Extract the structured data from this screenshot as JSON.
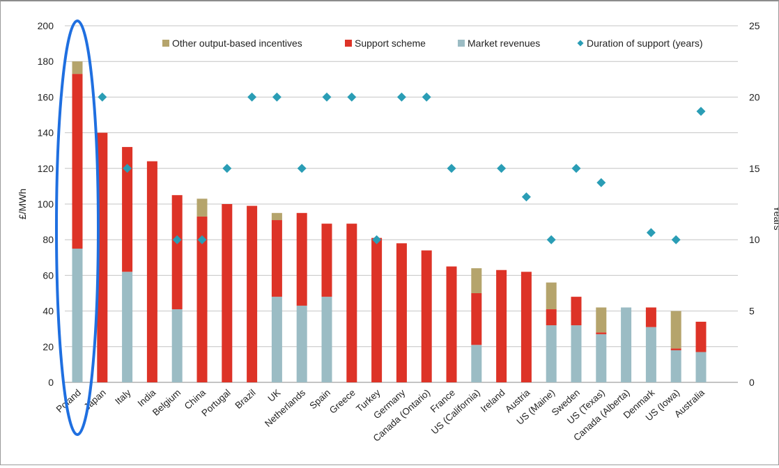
{
  "chart_data": {
    "type": "bar",
    "stacked": true,
    "title": "",
    "ylabel": "£/MWh",
    "y2label": "Years",
    "ylim": [
      0,
      200
    ],
    "yticks": [
      0,
      20,
      40,
      60,
      80,
      100,
      120,
      140,
      160,
      180,
      200
    ],
    "y2lim": [
      0,
      25
    ],
    "y2ticks": [
      0,
      5,
      10,
      15,
      20,
      25
    ],
    "grid": true,
    "legend_position": "top-right",
    "categories": [
      "Poland",
      "Japan",
      "Italy",
      "India",
      "Belgium",
      "China",
      "Portugal",
      "Brazil",
      "UK",
      "Netherlands",
      "Spain",
      "Greece",
      "Turkey",
      "Germany",
      "Canada (Ontario)",
      "France",
      "US (California)",
      "Ireland",
      "Austria",
      "US (Maine)",
      "Sweden",
      "US (Texas)",
      "Canada (Alberta)",
      "Denmark",
      "US (Iowa)",
      "Australia"
    ],
    "series": [
      {
        "name": "Market revenues",
        "color": "#9bbcc4",
        "axis": "left",
        "values": [
          75,
          0,
          62,
          0,
          41,
          0,
          0,
          0,
          48,
          43,
          48,
          0,
          0,
          0,
          0,
          0,
          21,
          0,
          0,
          32,
          32,
          27,
          42,
          31,
          18,
          17
        ]
      },
      {
        "name": "Support scheme",
        "color": "#dd3327",
        "axis": "left",
        "values": [
          98,
          140,
          70,
          124,
          64,
          93,
          100,
          99,
          43,
          52,
          41,
          89,
          81,
          78,
          74,
          65,
          29,
          63,
          62,
          9,
          16,
          1,
          0,
          11,
          1,
          17
        ]
      },
      {
        "name": "Other output-based incentives",
        "color": "#b5a46c",
        "axis": "left",
        "values": [
          7,
          0,
          0,
          0,
          0,
          10,
          0,
          0,
          4,
          0,
          0,
          0,
          0,
          0,
          0,
          0,
          14,
          0,
          0,
          15,
          0,
          14,
          0,
          0,
          21,
          0
        ]
      },
      {
        "name": "Duration of support (years)",
        "color": "#2a9db5",
        "axis": "right",
        "type": "scatter",
        "values": [
          null,
          20,
          15,
          null,
          10,
          10,
          15,
          20,
          20,
          15,
          20,
          20,
          10,
          20,
          20,
          15,
          null,
          15,
          13,
          10,
          15,
          14,
          null,
          10.5,
          10,
          19
        ]
      }
    ],
    "legend_order": [
      "Other output-based incentives",
      "Support scheme",
      "Market revenues",
      "Duration of support (years)"
    ],
    "annotation": {
      "type": "ellipse",
      "target": "Poland",
      "color": "#1f6fe0"
    }
  }
}
